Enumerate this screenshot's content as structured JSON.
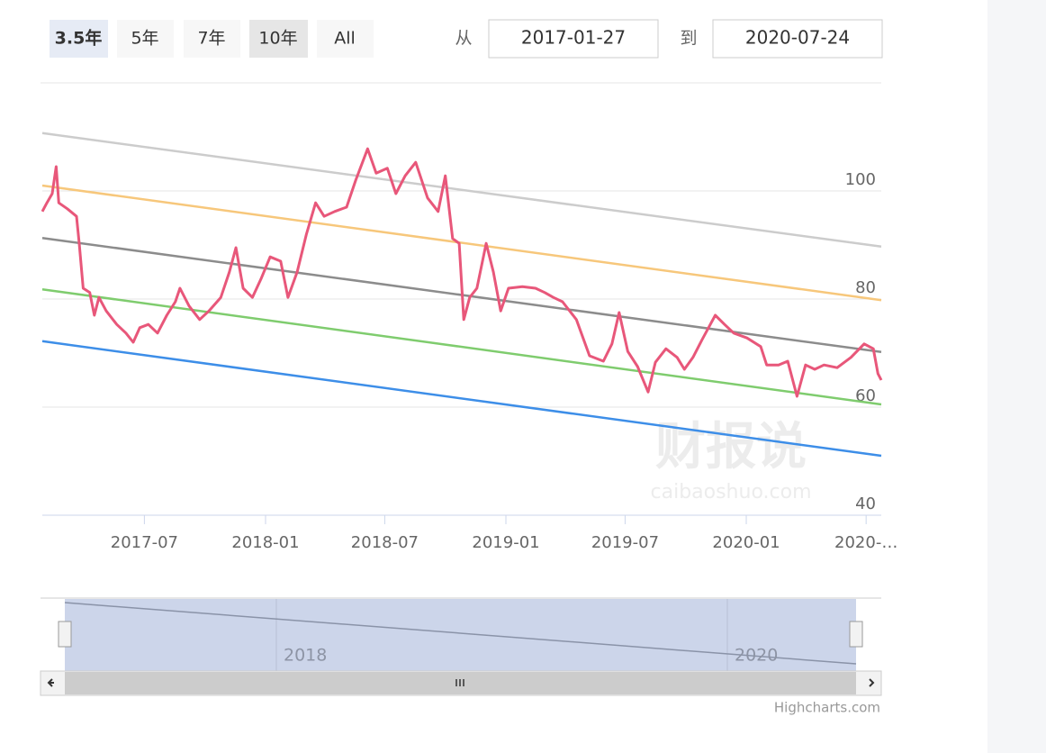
{
  "range_selector": {
    "buttons": [
      "3.5年",
      "5年",
      "7年",
      "10年",
      "All"
    ],
    "from_label": "从",
    "from": "2017-01-27",
    "to_label": "到",
    "to": "2020-07-24"
  },
  "watermark": {
    "main": "财报说",
    "site": "caibaoshuo.com"
  },
  "navigator": {
    "labels": [
      "2018",
      "2020"
    ]
  },
  "credits": "Highcharts.com",
  "chart_data": {
    "type": "line",
    "grid": true,
    "xlim": [
      "2017-01-27",
      "2020-07-24"
    ],
    "xticks": [
      "2017-07",
      "2018-01",
      "2018-07",
      "2019-01",
      "2019-07",
      "2020-01",
      {
        "value": "2020-07",
        "label": "2020-…"
      }
    ],
    "ylim": [
      40,
      120
    ],
    "yticks": [
      40,
      60,
      80,
      100
    ],
    "series": [
      {
        "color": "#cccccc",
        "x": [
          "2017-01-27",
          "2020-07-24"
        ],
        "values": [
          110.7,
          89.7
        ]
      },
      {
        "color": "#f7c77b",
        "x": [
          "2017-01-27",
          "2020-07-24"
        ],
        "values": [
          101,
          79.8
        ]
      },
      {
        "color": "#8c8c8c",
        "x": [
          "2017-01-27",
          "2020-07-24"
        ],
        "values": [
          91.3,
          70.2
        ]
      },
      {
        "color": "#7fcc6e",
        "x": [
          "2017-01-27",
          "2020-07-24"
        ],
        "values": [
          81.8,
          60.5
        ]
      },
      {
        "color": "#3d8ee8",
        "x": [
          "2017-01-27",
          "2020-07-24"
        ],
        "values": [
          72.2,
          51
        ]
      },
      {
        "color": "#e8577a",
        "x": [
          "2017-01-27",
          "2017-02-03",
          "2017-02-11",
          "2017-02-17",
          "2017-02-21",
          "2017-03-06",
          "2017-03-20",
          "2017-03-24",
          "2017-03-30",
          "2017-04-09",
          "2017-04-16",
          "2017-04-23",
          "2017-05-04",
          "2017-05-20",
          "2017-06-03",
          "2017-06-14",
          "2017-06-24",
          "2017-07-07",
          "2017-07-21",
          "2017-08-04",
          "2017-08-17",
          "2017-08-24",
          "2017-09-07",
          "2017-09-23",
          "2017-10-07",
          "2017-10-25",
          "2017-11-07",
          "2017-11-17",
          "2017-11-28",
          "2017-12-12",
          "2017-12-25",
          "2018-01-08",
          "2018-01-24",
          "2018-02-04",
          "2018-02-18",
          "2018-03-04",
          "2018-03-18",
          "2018-03-31",
          "2018-04-16",
          "2018-05-04",
          "2018-05-18",
          "2018-06-05",
          "2018-06-18",
          "2018-07-05",
          "2018-07-18",
          "2018-08-01",
          "2018-08-17",
          "2018-09-04",
          "2018-09-20",
          "2018-10-01",
          "2018-10-12",
          "2018-10-22",
          "2018-10-29",
          "2018-11-07",
          "2018-11-18",
          "2018-12-02",
          "2018-12-13",
          "2018-12-24",
          "2019-01-05",
          "2019-01-26",
          "2019-02-15",
          "2019-03-01",
          "2019-03-14",
          "2019-03-28",
          "2019-04-18",
          "2019-05-08",
          "2019-05-29",
          "2019-06-11",
          "2019-06-22",
          "2019-07-05",
          "2019-07-20",
          "2019-08-05",
          "2019-08-16",
          "2019-09-01",
          "2019-09-18",
          "2019-09-29",
          "2019-10-12",
          "2019-10-26",
          "2019-11-15",
          "2019-11-29",
          "2019-12-13",
          "2020-01-02",
          "2020-01-23",
          "2020-02-01",
          "2020-02-19",
          "2020-03-04",
          "2020-03-18",
          "2020-03-31",
          "2020-04-14",
          "2020-04-28",
          "2020-05-18",
          "2020-06-08",
          "2020-06-28",
          "2020-07-12",
          "2020-07-19",
          "2020-07-24"
        ],
        "values": [
          96.2,
          97.8,
          99.5,
          104.5,
          97.8,
          96.7,
          95.3,
          90.3,
          82,
          81.2,
          77,
          80.3,
          77.8,
          75.3,
          73.7,
          72,
          74.7,
          75.3,
          73.7,
          77,
          79.5,
          82,
          78.7,
          76.2,
          77.8,
          80.3,
          85,
          89.5,
          82,
          80.3,
          83.7,
          87.8,
          87,
          80.3,
          85,
          92,
          97.8,
          95.3,
          96.2,
          97,
          102,
          107.8,
          103.3,
          104.2,
          99.5,
          102.8,
          105.3,
          98.7,
          96.2,
          102.8,
          91.2,
          90.3,
          76.2,
          80.3,
          82,
          90.3,
          85,
          77.8,
          82,
          82.3,
          82,
          81.2,
          80.3,
          79.5,
          76.2,
          69.5,
          68.5,
          71.7,
          77.5,
          70.3,
          67.5,
          62.8,
          68.3,
          70.8,
          69.2,
          67,
          69.2,
          72.5,
          77,
          75.3,
          73.7,
          72.8,
          71.2,
          67.8,
          67.8,
          68.5,
          62,
          67.8,
          67,
          67.8,
          67.3,
          69.2,
          71.7,
          70.8,
          66.2,
          65
        ]
      }
    ]
  }
}
